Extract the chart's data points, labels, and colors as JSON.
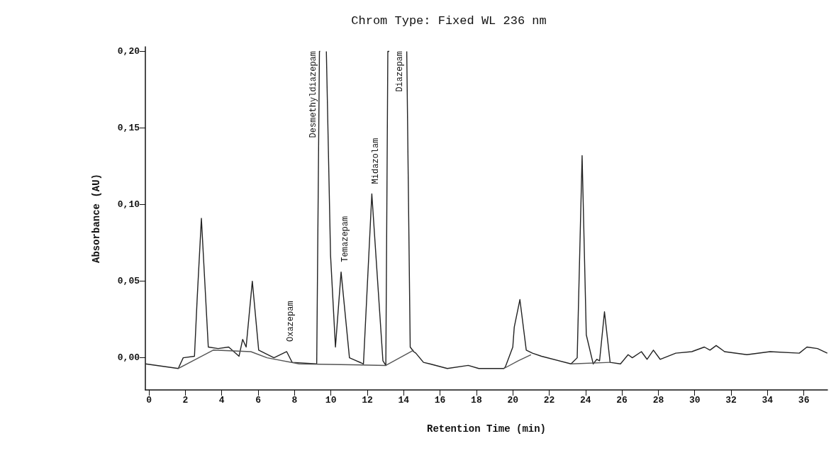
{
  "chart_data": {
    "type": "line",
    "title": "Chrom Type: Fixed WL 236 nm",
    "xlabel": "Retention Time (min)",
    "ylabel": "Absorbance (AU)",
    "xlim": [
      -0.2,
      37.3
    ],
    "xticks": [
      0,
      2,
      4,
      6,
      8,
      10,
      12,
      14,
      16,
      18,
      20,
      22,
      24,
      26,
      28,
      30,
      32,
      34,
      36
    ],
    "ylim": [
      -0.021,
      0.203
    ],
    "yticks": [
      {
        "value": 0,
        "label": "0,00"
      },
      {
        "value": 0.05,
        "label": "0,05"
      },
      {
        "value": 0.1,
        "label": "0,10"
      },
      {
        "value": 0.15,
        "label": "0,15"
      },
      {
        "value": 0.2,
        "label": "0,20"
      }
    ],
    "grid": false,
    "marker": "none",
    "line_style": "solid",
    "series": [
      {
        "color": "#222222",
        "x": [
          -0.19,
          1.61,
          1.88,
          2.5,
          2.65,
          2.88,
          3.26,
          3.8,
          4.38,
          4.95,
          5.15,
          5.34,
          5.68,
          6.03,
          6.87,
          7.57,
          7.87,
          9.22,
          9.37,
          9.41,
          9.58,
          9.75,
          9.98,
          10.25,
          10.56,
          11.02,
          11.79,
          12.25,
          12.86,
          13.02,
          13.13,
          13.21,
          13.7,
          14.17,
          14.36,
          14.55,
          14.67,
          15.09,
          15.44,
          16.4,
          17.55,
          18.13,
          19.51,
          19.59,
          20.0,
          20.08,
          20.39,
          20.74,
          21.08,
          21.58,
          23.2,
          23.54,
          23.81,
          24.04,
          24.42,
          24.62,
          24.77,
          25.04,
          25.35,
          25.92,
          26.34,
          26.57,
          27.07,
          27.38,
          27.73,
          28.1,
          28.96,
          29.84,
          30.53,
          30.84,
          31.18,
          31.64,
          32.87,
          34.14,
          35.75,
          36.17,
          36.75,
          37.29
        ],
        "values": [
          -0.004,
          -0.007,
          0.0,
          0.001,
          0.039,
          0.091,
          0.007,
          0.006,
          0.007,
          0.001,
          0.012,
          0.007,
          0.05,
          0.005,
          0.0,
          0.004,
          -0.003,
          -0.004,
          0.2,
          0.2,
          null,
          0.2,
          0.067,
          0.007,
          0.056,
          0.0,
          -0.004,
          0.107,
          -0.002,
          -0.005,
          0.2,
          0.2,
          null,
          0.2,
          0.007,
          0.004,
          0.003,
          -0.003,
          -0.004,
          -0.007,
          -0.005,
          -0.007,
          -0.007,
          -0.006,
          0.007,
          0.02,
          0.038,
          0.005,
          0.003,
          0.001,
          -0.004,
          0.0,
          0.132,
          0.015,
          -0.004,
          -0.001,
          -0.002,
          0.03,
          -0.003,
          -0.004,
          0.002,
          0.0,
          0.004,
          -0.001,
          0.005,
          -0.001,
          0.003,
          0.004,
          0.007,
          0.005,
          0.008,
          0.004,
          0.002,
          0.004,
          0.003,
          0.007,
          0.006,
          0.003
        ]
      },
      {
        "color": "#555555",
        "x": [
          1.61,
          3.53,
          5.6,
          6.49,
          8.26,
          13.02,
          14.55,
          17.0,
          19.51,
          20.3,
          21.0,
          22.0,
          23.2,
          25.35
        ],
        "values": [
          -0.007,
          0.005,
          0.004,
          0.0,
          -0.004,
          -0.005,
          0.005,
          null,
          -0.007,
          -0.002,
          0.002,
          null,
          -0.004,
          -0.003
        ]
      }
    ],
    "annotations": [
      {
        "text": "Oxazepam",
        "x": 7.57,
        "y": 0.004
      },
      {
        "text": "Desmethyldiazepam",
        "x": 9.41,
        "y": 0.2
      },
      {
        "text": "Temazepam",
        "x": 10.56,
        "y": 0.056
      },
      {
        "text": "Midazolam",
        "x": 12.25,
        "y": 0.107
      },
      {
        "text": "Diazepam",
        "x": 14.17,
        "y": 0.2
      }
    ]
  }
}
